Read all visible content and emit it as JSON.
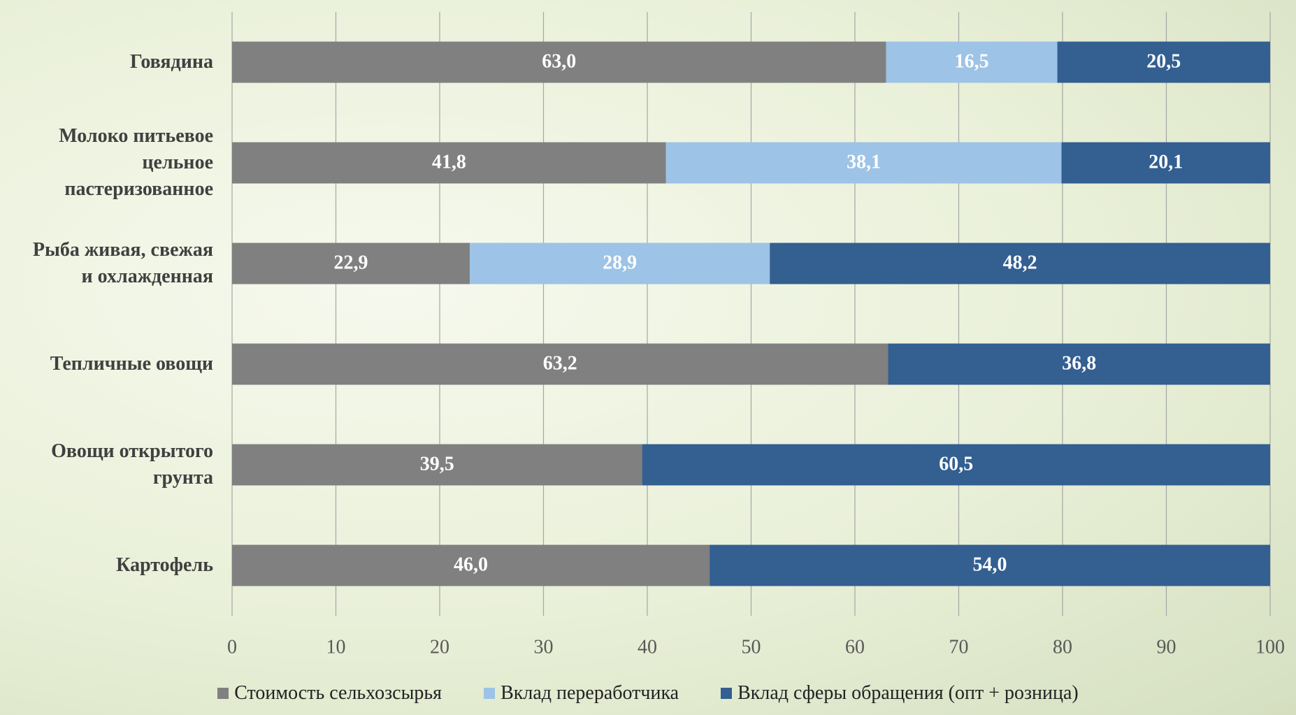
{
  "chart_data": {
    "type": "bar",
    "orientation": "horizontal",
    "stacked": true,
    "categories": [
      "Говядина",
      "Молоко питьевое\nцельное\nпастеризованное",
      "Рыба живая, свежая\nи охлажденная",
      "Тепличные овощи",
      "Овощи открытого\nгрунта",
      "Картофель"
    ],
    "series": [
      {
        "name": "Стоимость сельхозсырья",
        "color": "#808080",
        "values": [
          63.0,
          41.8,
          22.9,
          63.2,
          39.5,
          46.0
        ],
        "value_labels": [
          "63,0",
          "41,8",
          "22,9",
          "63,2",
          "39,5",
          "46,0"
        ]
      },
      {
        "name": "Вклад переработчика",
        "color": "#9dc3e6",
        "values": [
          16.5,
          38.1,
          28.9,
          null,
          null,
          null
        ],
        "value_labels": [
          "16,5",
          "38,1",
          "28,9",
          null,
          null,
          null
        ]
      },
      {
        "name": "Вклад сферы обращения (опт + розница)",
        "color": "#335f91",
        "values": [
          20.5,
          20.1,
          48.2,
          36.8,
          60.5,
          54.0
        ],
        "value_labels": [
          "20,5",
          "20,1",
          "48,2",
          "36,8",
          "60,5",
          "54,0"
        ]
      }
    ],
    "xlim": [
      0,
      100
    ],
    "xticks": [
      0,
      10,
      20,
      30,
      40,
      50,
      60,
      70,
      80,
      90,
      100
    ],
    "grid": true,
    "legend": "bottom"
  }
}
